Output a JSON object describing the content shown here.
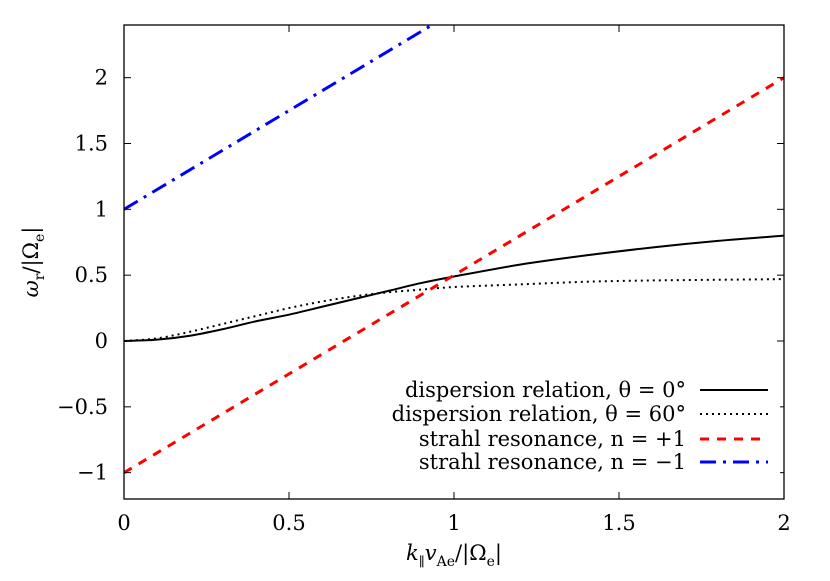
{
  "chart_data": {
    "type": "line",
    "title": "",
    "xlabel": "k_∥ v_Ae / |Ω_e|",
    "ylabel": "ω_r / |Ω_e|",
    "xlim": [
      0,
      2
    ],
    "ylim": [
      -1.2,
      2.4
    ],
    "grid": false,
    "legend_position": "lower right",
    "x_ticks": [
      0,
      0.5,
      1,
      1.5,
      2
    ],
    "x_tick_labels": [
      "0",
      "0.5",
      "1",
      "1.5",
      "2"
    ],
    "y_ticks": [
      -1,
      -0.5,
      0,
      0.5,
      1,
      1.5,
      2
    ],
    "y_tick_labels": [
      "−1",
      "−0.5",
      "0",
      "0.5",
      "1",
      "1.5",
      "2"
    ],
    "series": [
      {
        "name": "dispersion relation, θ = 0°",
        "style": "solid",
        "color": "#000000",
        "x": [
          0,
          0.1,
          0.2,
          0.3,
          0.4,
          0.5,
          0.6,
          0.7,
          0.8,
          0.9,
          1.0,
          1.2,
          1.4,
          1.6,
          1.8,
          2.0
        ],
        "y": [
          0,
          0.01,
          0.04,
          0.09,
          0.15,
          0.2,
          0.26,
          0.32,
          0.38,
          0.44,
          0.49,
          0.58,
          0.65,
          0.71,
          0.76,
          0.8
        ]
      },
      {
        "name": "dispersion relation, θ = 60°",
        "style": "dotted",
        "color": "#000000",
        "x": [
          0,
          0.1,
          0.2,
          0.3,
          0.4,
          0.5,
          0.6,
          0.7,
          0.8,
          0.9,
          1.0,
          1.2,
          1.4,
          1.6,
          1.8,
          2.0
        ],
        "y": [
          0,
          0.02,
          0.07,
          0.13,
          0.19,
          0.25,
          0.3,
          0.34,
          0.37,
          0.39,
          0.41,
          0.43,
          0.45,
          0.46,
          0.465,
          0.47
        ]
      },
      {
        "name": "strahl resonance, n = +1",
        "style": "dashed",
        "color": "#ff0000",
        "x": [
          0,
          2
        ],
        "y": [
          -1,
          2
        ]
      },
      {
        "name": "strahl resonance, n = −1",
        "style": "dashdot",
        "color": "#0000ff",
        "x": [
          0,
          0.9333
        ],
        "y": [
          1,
          2.4
        ]
      }
    ]
  },
  "labels": {
    "xlabel_main": "k",
    "xlabel_sub1": "∥",
    "xlabel_v": "v",
    "xlabel_sub2": "Ae",
    "xlabel_rest": "/|Ω",
    "xlabel_sub3": "e",
    "xlabel_end": "|",
    "ylabel_main": "ω",
    "ylabel_sub1": "r",
    "ylabel_rest": "/|Ω",
    "ylabel_sub2": "e",
    "ylabel_end": "|"
  }
}
